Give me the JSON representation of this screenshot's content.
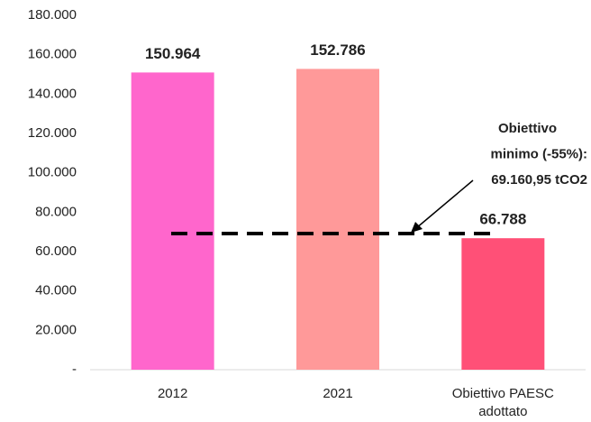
{
  "chart_data": {
    "type": "bar",
    "categories": [
      "2012",
      "2021",
      "Obiettivo PAESC adottato"
    ],
    "values": [
      150964,
      152786,
      66788
    ],
    "value_labels": [
      "150.964",
      "152.786",
      "66.788"
    ],
    "colors": [
      "#ff66cc",
      "#ff9999",
      "#ff5077"
    ],
    "ylim": [
      0,
      180000
    ],
    "yticks": [
      {
        "value": 0,
        "label": "-"
      },
      {
        "value": 20000,
        "label": "20.000"
      },
      {
        "value": 40000,
        "label": "40.000"
      },
      {
        "value": 60000,
        "label": "60.000"
      },
      {
        "value": 80000,
        "label": "80.000"
      },
      {
        "value": 100000,
        "label": "100.000"
      },
      {
        "value": 120000,
        "label": "120.000"
      },
      {
        "value": 140000,
        "label": "140.000"
      },
      {
        "value": 160000,
        "label": "160.000"
      },
      {
        "value": 180000,
        "label": "180.000"
      }
    ],
    "reference_line": {
      "value": 69160.95,
      "label": [
        "Obiettivo",
        "minimo  (-55%):",
        "69.160,95 tCO2"
      ]
    },
    "grid": false
  }
}
